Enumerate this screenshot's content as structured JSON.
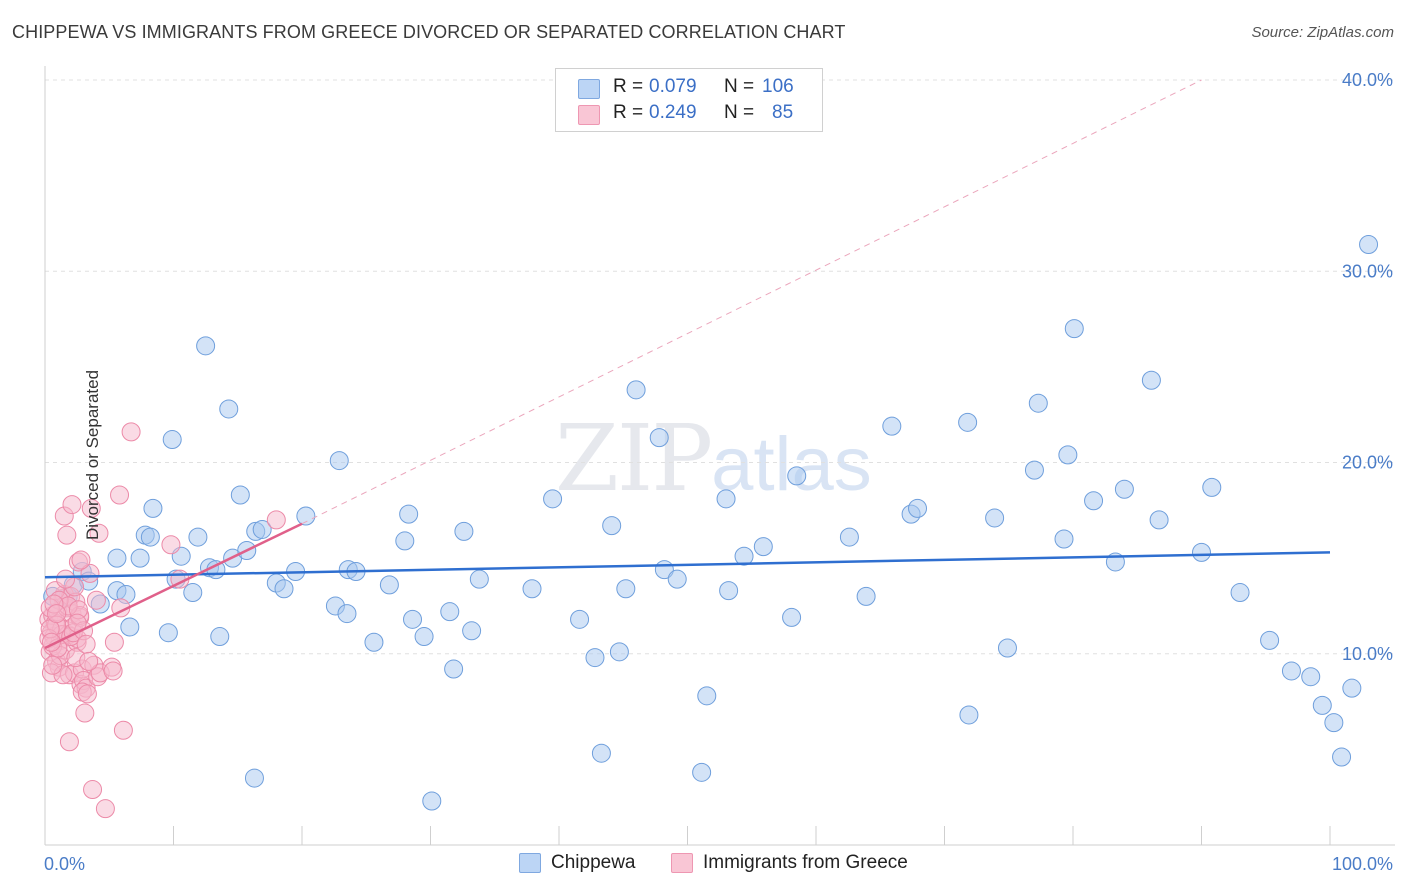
{
  "title": "CHIPPEWA VS IMMIGRANTS FROM GREECE DIVORCED OR SEPARATED CORRELATION CHART",
  "source": "Source: ZipAtlas.com",
  "watermark": {
    "zip": "ZIP",
    "atlas": "atlas"
  },
  "legend": {
    "rows": [
      {
        "r_label": "R =",
        "r_value": "0.079",
        "n_label": "N =",
        "n_value": "106",
        "color": "#a8c8f0"
      },
      {
        "r_label": "R =",
        "r_value": "0.249",
        "n_label": "N =",
        "n_value": "85",
        "color": "#f6b8cb"
      }
    ]
  },
  "bottom_legend": [
    {
      "label": "Chippewa",
      "color": "#a8c8f0"
    },
    {
      "label": "Immigrants from Greece",
      "color": "#f6b8cb"
    }
  ],
  "chart_data": {
    "type": "scatter",
    "title": "CHIPPEWA VS IMMIGRANTS FROM GREECE DIVORCED OR SEPARATED CORRELATION CHART",
    "xlabel": "",
    "ylabel": "Divorced or Separated",
    "xlim": [
      0,
      100
    ],
    "ylim": [
      0,
      40
    ],
    "x_tick_labels": [
      "0.0%",
      "100.0%"
    ],
    "y_ticks": [
      10,
      20,
      30,
      40
    ],
    "y_tick_labels": [
      "10.0%",
      "20.0%",
      "30.0%",
      "40.0%"
    ],
    "grid": true,
    "series": [
      {
        "name": "Chippewa",
        "color": "#a8c8f0",
        "stroke": "#6f9fdc",
        "trend": {
          "x0": 0,
          "y0": 14.0,
          "x1": 100,
          "y1": 15.3,
          "color": "#2f6fd0"
        },
        "points": [
          [
            0.6,
            13.0
          ],
          [
            1.5,
            12.9
          ],
          [
            1.8,
            13.0
          ],
          [
            2.2,
            13.6
          ],
          [
            2.9,
            14.3
          ],
          [
            3.4,
            13.8
          ],
          [
            4.3,
            12.6
          ],
          [
            5.6,
            13.3
          ],
          [
            5.6,
            15.0
          ],
          [
            6.3,
            13.1
          ],
          [
            6.6,
            11.4
          ],
          [
            7.4,
            15.0
          ],
          [
            7.8,
            16.2
          ],
          [
            8.2,
            16.1
          ],
          [
            8.4,
            17.6
          ],
          [
            9.6,
            11.1
          ],
          [
            9.9,
            21.2
          ],
          [
            10.2,
            13.9
          ],
          [
            10.6,
            15.1
          ],
          [
            11.5,
            13.2
          ],
          [
            11.9,
            16.1
          ],
          [
            12.5,
            26.1
          ],
          [
            12.8,
            14.5
          ],
          [
            13.3,
            14.4
          ],
          [
            13.6,
            10.9
          ],
          [
            14.3,
            22.8
          ],
          [
            14.6,
            15.0
          ],
          [
            15.2,
            18.3
          ],
          [
            15.7,
            15.4
          ],
          [
            16.4,
            16.4
          ],
          [
            16.9,
            16.5
          ],
          [
            16.3,
            3.5
          ],
          [
            18.0,
            13.7
          ],
          [
            18.6,
            13.4
          ],
          [
            19.5,
            14.3
          ],
          [
            20.3,
            17.2
          ],
          [
            22.6,
            12.5
          ],
          [
            22.9,
            20.1
          ],
          [
            23.5,
            12.1
          ],
          [
            23.6,
            14.4
          ],
          [
            24.2,
            14.3
          ],
          [
            25.6,
            10.6
          ],
          [
            26.8,
            13.6
          ],
          [
            28.0,
            15.9
          ],
          [
            28.3,
            17.3
          ],
          [
            28.6,
            11.8
          ],
          [
            29.5,
            10.9
          ],
          [
            30.1,
            2.3
          ],
          [
            31.5,
            12.2
          ],
          [
            31.8,
            9.2
          ],
          [
            32.6,
            16.4
          ],
          [
            33.2,
            11.2
          ],
          [
            33.8,
            13.9
          ],
          [
            37.9,
            13.4
          ],
          [
            39.5,
            18.1
          ],
          [
            41.6,
            11.8
          ],
          [
            42.8,
            9.8
          ],
          [
            43.3,
            4.8
          ],
          [
            44.1,
            16.7
          ],
          [
            44.7,
            10.1
          ],
          [
            45.2,
            13.4
          ],
          [
            46.0,
            23.8
          ],
          [
            47.8,
            21.3
          ],
          [
            48.2,
            14.4
          ],
          [
            49.2,
            13.9
          ],
          [
            51.1,
            3.8
          ],
          [
            51.5,
            7.8
          ],
          [
            53.0,
            18.1
          ],
          [
            53.2,
            13.3
          ],
          [
            54.4,
            15.1
          ],
          [
            55.9,
            15.6
          ],
          [
            58.1,
            11.9
          ],
          [
            58.5,
            19.3
          ],
          [
            62.6,
            16.1
          ],
          [
            63.9,
            13.0
          ],
          [
            65.9,
            21.9
          ],
          [
            67.4,
            17.3
          ],
          [
            67.9,
            17.6
          ],
          [
            71.8,
            22.1
          ],
          [
            71.9,
            6.8
          ],
          [
            73.9,
            17.1
          ],
          [
            74.9,
            10.3
          ],
          [
            77.3,
            23.1
          ],
          [
            77.0,
            19.6
          ],
          [
            79.3,
            16.0
          ],
          [
            79.6,
            20.4
          ],
          [
            80.1,
            27.0
          ],
          [
            81.6,
            18.0
          ],
          [
            83.3,
            14.8
          ],
          [
            84.0,
            18.6
          ],
          [
            86.1,
            24.3
          ],
          [
            86.7,
            17.0
          ],
          [
            90.0,
            15.3
          ],
          [
            90.8,
            18.7
          ],
          [
            93.0,
            13.2
          ],
          [
            95.3,
            10.7
          ],
          [
            97.0,
            9.1
          ],
          [
            98.5,
            8.8
          ],
          [
            99.4,
            7.3
          ],
          [
            100.3,
            6.4
          ],
          [
            100.9,
            4.6
          ],
          [
            101.7,
            8.2
          ],
          [
            103.0,
            31.4
          ]
        ]
      },
      {
        "name": "Immigrants from Greece",
        "color": "#f6b8cb",
        "stroke": "#ec8aa8",
        "trend": {
          "x0": 0,
          "y0": 10.3,
          "x1": 20,
          "y1": 16.8,
          "color": "#e0608a"
        },
        "trend_extension": {
          "x0": 20,
          "y0": 16.8,
          "x1": 90,
          "y1": 40.0,
          "color": "#eba6bc"
        },
        "points": [
          [
            0.3,
            11.8
          ],
          [
            0.4,
            10.1
          ],
          [
            0.5,
            11.1
          ],
          [
            0.6,
            12.0
          ],
          [
            0.7,
            10.9
          ],
          [
            0.8,
            11.6
          ],
          [
            0.9,
            9.6
          ],
          [
            1.0,
            12.2
          ],
          [
            1.1,
            9.3
          ],
          [
            1.2,
            10.7
          ],
          [
            1.3,
            11.3
          ],
          [
            1.4,
            12.9
          ],
          [
            1.5,
            13.1
          ],
          [
            1.6,
            10.2
          ],
          [
            1.7,
            12.4
          ],
          [
            1.8,
            11.0
          ],
          [
            1.9,
            8.9
          ],
          [
            2.0,
            13.0
          ],
          [
            2.1,
            12.1
          ],
          [
            2.2,
            11.4
          ],
          [
            2.3,
            9.0
          ],
          [
            2.4,
            12.7
          ],
          [
            2.5,
            10.6
          ],
          [
            2.6,
            14.8
          ],
          [
            2.7,
            11.9
          ],
          [
            2.8,
            8.4
          ],
          [
            2.9,
            9.2
          ],
          [
            3.0,
            8.6
          ],
          [
            3.1,
            6.9
          ],
          [
            3.2,
            8.2
          ],
          [
            3.5,
            14.2
          ],
          [
            3.6,
            17.6
          ],
          [
            3.7,
            2.9
          ],
          [
            3.8,
            9.4
          ],
          [
            4.0,
            12.8
          ],
          [
            4.1,
            8.8
          ],
          [
            4.2,
            16.3
          ],
          [
            4.3,
            9.0
          ],
          [
            4.7,
            1.9
          ],
          [
            5.2,
            9.3
          ],
          [
            5.3,
            9.1
          ],
          [
            5.4,
            10.6
          ],
          [
            5.8,
            18.3
          ],
          [
            5.9,
            12.4
          ],
          [
            6.1,
            6.0
          ],
          [
            6.7,
            21.6
          ],
          [
            0.5,
            9.0
          ],
          [
            0.8,
            13.3
          ],
          [
            1.1,
            12.8
          ],
          [
            1.3,
            11.0
          ],
          [
            1.5,
            17.2
          ],
          [
            1.7,
            16.2
          ],
          [
            1.9,
            5.4
          ],
          [
            2.1,
            17.8
          ],
          [
            2.3,
            13.5
          ],
          [
            2.5,
            10.8
          ],
          [
            2.7,
            12.0
          ],
          [
            2.9,
            8.0
          ],
          [
            3.3,
            7.9
          ],
          [
            0.4,
            12.4
          ],
          [
            0.6,
            10.4
          ],
          [
            0.9,
            11.5
          ],
          [
            1.2,
            9.9
          ],
          [
            1.4,
            8.9
          ],
          [
            1.6,
            13.9
          ],
          [
            1.8,
            12.5
          ],
          [
            2.0,
            10.9
          ],
          [
            2.2,
            11.1
          ],
          [
            2.4,
            9.8
          ],
          [
            2.6,
            12.3
          ],
          [
            2.8,
            14.9
          ],
          [
            3.0,
            11.2
          ],
          [
            3.2,
            10.5
          ],
          [
            3.4,
            9.6
          ],
          [
            0.3,
            10.8
          ],
          [
            0.7,
            12.6
          ],
          [
            1.0,
            10.3
          ],
          [
            2.5,
            11.6
          ],
          [
            9.8,
            15.7
          ],
          [
            10.5,
            13.9
          ],
          [
            0.4,
            11.3
          ],
          [
            0.5,
            10.6
          ],
          [
            0.6,
            9.4
          ],
          [
            18.0,
            17.0
          ],
          [
            0.9,
            12.1
          ]
        ]
      }
    ]
  }
}
